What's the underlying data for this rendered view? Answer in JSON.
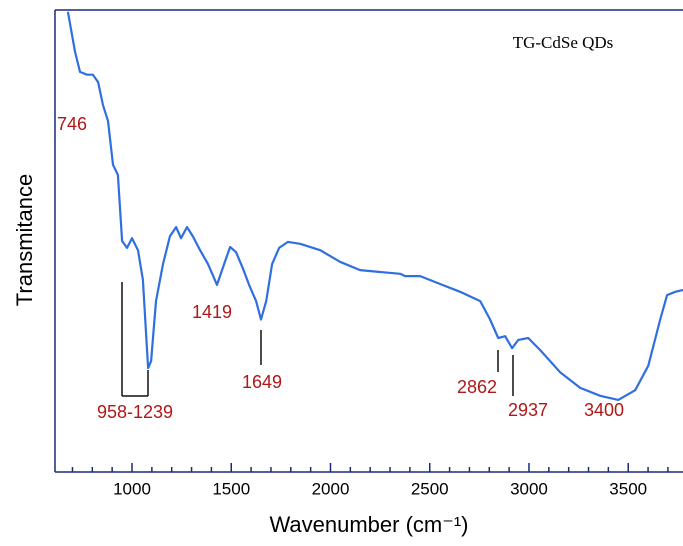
{
  "chart_data": {
    "type": "line",
    "title": "TG-CdSe QDs",
    "x_label": "Wavenumber  (cm⁻¹)",
    "y_label": "Transmitance",
    "xlim": [
      612,
      3776
    ],
    "ylim": [
      0,
      100
    ],
    "xticks": [
      1000,
      1500,
      2000,
      2500,
      3000,
      3500
    ],
    "xticks_minor": [
      700,
      800,
      900,
      1100,
      1200,
      1300,
      1400,
      1600,
      1700,
      1800,
      1900,
      2100,
      2200,
      2300,
      2400,
      2600,
      2700,
      2800,
      2900,
      3100,
      3200,
      3300,
      3400,
      3600,
      3700
    ],
    "annotations": [
      "746",
      "958-1239",
      "1419",
      "1649",
      "2862",
      "2937",
      "3400"
    ],
    "series": [
      {
        "name": "TG-CdSe QDs",
        "color": "#2f6fe0",
        "x": [
          677,
          713,
          738,
          773,
          803,
          829,
          854,
          879,
          904,
          929,
          950,
          975,
          1000,
          1030,
          1055,
          1081,
          1096,
          1121,
          1156,
          1191,
          1222,
          1247,
          1277,
          1307,
          1343,
          1383,
          1428,
          1464,
          1494,
          1524,
          1559,
          1590,
          1625,
          1650,
          1676,
          1706,
          1741,
          1786,
          1847,
          1948,
          2048,
          2149,
          2250,
          2351,
          2376,
          2452,
          2552,
          2653,
          2754,
          2804,
          2845,
          2880,
          2915,
          2946,
          2996,
          3056,
          3157,
          3258,
          3359,
          3450,
          3535,
          3601,
          3661,
          3696,
          3737,
          3776
        ],
        "values": [
          99.6,
          91,
          86.6,
          86,
          86,
          84.4,
          79.4,
          76,
          66.5,
          64.3,
          50,
          48.5,
          50.6,
          48,
          41.6,
          22.5,
          24,
          37,
          45,
          51,
          53,
          50.6,
          53,
          51,
          48,
          45,
          40.5,
          45,
          48.7,
          47.6,
          44,
          40.5,
          37,
          33,
          37,
          45,
          48.5,
          49.8,
          49.4,
          48,
          45.5,
          43.7,
          43.3,
          42.9,
          42.4,
          42.4,
          40.7,
          39,
          37,
          33,
          29,
          29.4,
          26.8,
          28.6,
          29,
          26.4,
          21.6,
          18.2,
          16.5,
          15.6,
          17.7,
          23,
          33,
          38.3,
          39,
          39.4
        ]
      }
    ]
  }
}
